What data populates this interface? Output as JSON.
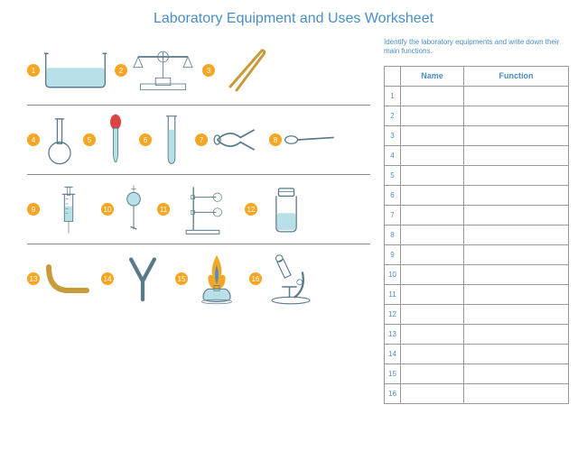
{
  "title": "Laboratory Equipment and Uses Worksheet",
  "instruction": "Identify the laboratory equipments and write down their main functions.",
  "table_headers": {
    "blank": "",
    "name": "Name",
    "function": "Function"
  },
  "badges": [
    "1",
    "2",
    "3",
    "4",
    "5",
    "6",
    "7",
    "8",
    "9",
    "10",
    "11",
    "12",
    "13",
    "14",
    "15",
    "16"
  ],
  "rows": [
    "1",
    "2",
    "3",
    "4",
    "5",
    "6",
    "7",
    "8",
    "9",
    "10",
    "11",
    "12",
    "13",
    "14",
    "15",
    "16"
  ],
  "equipment": [
    {
      "id": 1,
      "name": "beaker"
    },
    {
      "id": 2,
      "name": "balance"
    },
    {
      "id": 3,
      "name": "tweezers"
    },
    {
      "id": 4,
      "name": "round-flask"
    },
    {
      "id": 5,
      "name": "dropper"
    },
    {
      "id": 6,
      "name": "test-tube"
    },
    {
      "id": 7,
      "name": "tongs"
    },
    {
      "id": 8,
      "name": "spoon"
    },
    {
      "id": 9,
      "name": "syringe"
    },
    {
      "id": 10,
      "name": "separating-funnel"
    },
    {
      "id": 11,
      "name": "stand"
    },
    {
      "id": 12,
      "name": "jar"
    },
    {
      "id": 13,
      "name": "tube"
    },
    {
      "id": 14,
      "name": "y-tube"
    },
    {
      "id": 15,
      "name": "burner"
    },
    {
      "id": 16,
      "name": "microscope"
    }
  ],
  "colors": {
    "accent": "#4a8ec7",
    "badge": "#f5a623",
    "liquid": "#b8e0e8",
    "outline": "#5a7a8a",
    "gold": "#c79a3a",
    "flame_outer": "#f5a623",
    "flame_inner": "#4a8ec7",
    "red": "#d94545"
  }
}
